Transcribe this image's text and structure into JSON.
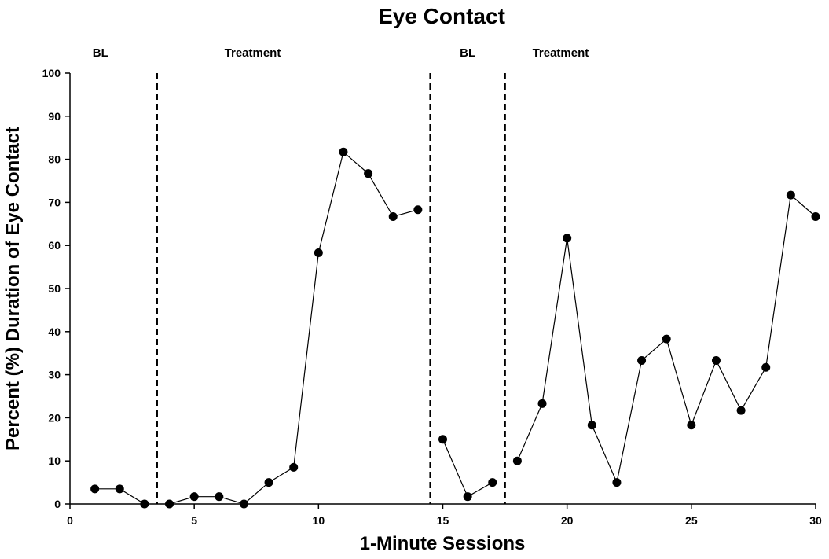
{
  "chart_data": {
    "type": "line",
    "title": "Eye Contact",
    "xlabel": "1-Minute Sessions",
    "ylabel": "Percent (%) Duration of Eye Contact",
    "xlim": [
      0,
      30
    ],
    "ylim": [
      0,
      100
    ],
    "x_ticks": [
      0,
      5,
      10,
      15,
      20,
      25,
      30
    ],
    "y_ticks": [
      0,
      10,
      20,
      30,
      40,
      50,
      60,
      70,
      80,
      90,
      100
    ],
    "grid": false,
    "phase_change_lines": [
      3.5,
      14.5,
      17.5
    ],
    "phases": [
      {
        "label": "BL",
        "x_start": 0,
        "x_end": 3.5
      },
      {
        "label": "Treatment",
        "x_start": 3.5,
        "x_end": 14.5
      },
      {
        "label": "BL",
        "x_start": 14.5,
        "x_end": 17.5
      },
      {
        "label": "Treatment",
        "x_start": 17.5,
        "x_end": 30
      }
    ],
    "segments": [
      {
        "phase": 0,
        "points": [
          [
            1,
            3.5
          ],
          [
            2,
            3.5
          ],
          [
            3,
            0
          ]
        ]
      },
      {
        "phase": 1,
        "points": [
          [
            4,
            0
          ],
          [
            5,
            1.7
          ],
          [
            6,
            1.7
          ],
          [
            7,
            0
          ],
          [
            8,
            5
          ],
          [
            9,
            8.5
          ],
          [
            10,
            58.3
          ],
          [
            11,
            81.7
          ],
          [
            12,
            76.7
          ],
          [
            13,
            66.7
          ],
          [
            14,
            68.3
          ]
        ]
      },
      {
        "phase": 2,
        "points": [
          [
            15,
            15
          ],
          [
            16,
            1.7
          ],
          [
            17,
            5
          ]
        ]
      },
      {
        "phase": 3,
        "points": [
          [
            18,
            10
          ],
          [
            19,
            23.3
          ],
          [
            20,
            61.7
          ],
          [
            21,
            18.3
          ],
          [
            22,
            5
          ],
          [
            23,
            33.3
          ],
          [
            24,
            38.3
          ],
          [
            25,
            18.3
          ],
          [
            26,
            33.3
          ],
          [
            27,
            21.7
          ],
          [
            28,
            31.7
          ],
          [
            29,
            71.7
          ],
          [
            30,
            66.7
          ]
        ]
      }
    ]
  }
}
